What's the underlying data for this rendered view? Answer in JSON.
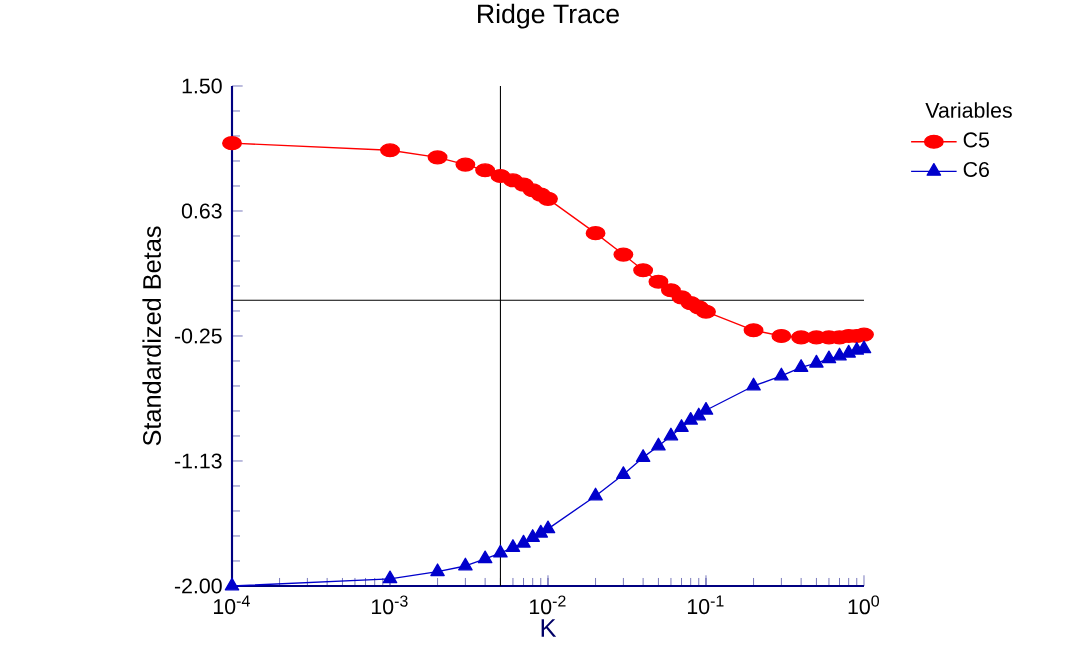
{
  "chart_data": {
    "type": "line",
    "title": "Ridge Trace",
    "xlabel": "K",
    "ylabel": "Standardized Betas",
    "legend_title": "Variables",
    "log": "x",
    "legend": "top right",
    "grid": false,
    "xlim": [
      0.0001,
      1
    ],
    "ylim": [
      -2.0,
      1.5
    ],
    "xticks": [
      {
        "value": 0.0001,
        "label": "10$^{-4}$"
      },
      {
        "value": 0.001,
        "label": "10$^{-3}$"
      },
      {
        "value": 0.01,
        "label": "10$^{-2}$"
      },
      {
        "value": 0.1,
        "label": "10$^{-1}$"
      },
      {
        "value": 1,
        "label": "10$^{0}$"
      }
    ],
    "yticks": [
      {
        "value": 1.5,
        "label": "1.50"
      },
      {
        "value": 0.625,
        "label": "0.63"
      },
      {
        "value": -0.25,
        "label": "-0.25"
      },
      {
        "value": -1.125,
        "label": "-1.13"
      },
      {
        "value": -2.0,
        "label": "-2.00"
      }
    ],
    "x": [
      0.0001,
      0.001,
      0.002,
      0.003,
      0.004,
      0.005,
      0.006,
      0.007,
      0.008,
      0.009,
      0.01,
      0.02,
      0.03,
      0.04,
      0.05,
      0.06,
      0.07,
      0.08,
      0.09,
      0.1,
      0.2,
      0.3,
      0.4,
      0.5,
      0.6,
      0.7,
      0.8,
      0.9,
      1.0
    ],
    "series": [
      {
        "name": "C5",
        "color": "#ff0000",
        "marker": "circle",
        "values": [
          1.1,
          1.05,
          1.0,
          0.95,
          0.91,
          0.87,
          0.84,
          0.81,
          0.77,
          0.74,
          0.71,
          0.47,
          0.32,
          0.21,
          0.13,
          0.07,
          0.02,
          -0.02,
          -0.05,
          -0.08,
          -0.21,
          -0.25,
          -0.26,
          -0.26,
          -0.26,
          -0.26,
          -0.25,
          -0.25,
          -0.24
        ]
      },
      {
        "name": "C6",
        "color": "#0000cc",
        "marker": "triangle",
        "values": [
          -2.0,
          -1.95,
          -1.9,
          -1.86,
          -1.81,
          -1.77,
          -1.73,
          -1.7,
          -1.66,
          -1.63,
          -1.6,
          -1.37,
          -1.22,
          -1.1,
          -1.02,
          -0.95,
          -0.89,
          -0.84,
          -0.81,
          -0.77,
          -0.6,
          -0.53,
          -0.47,
          -0.44,
          -0.41,
          -0.39,
          -0.37,
          -0.35,
          -0.34
        ]
      }
    ],
    "ref_lines": [
      {
        "axis": "y",
        "value": 0,
        "color": "#000000"
      },
      {
        "axis": "x",
        "value": 0.005,
        "color": "#000000"
      }
    ]
  }
}
